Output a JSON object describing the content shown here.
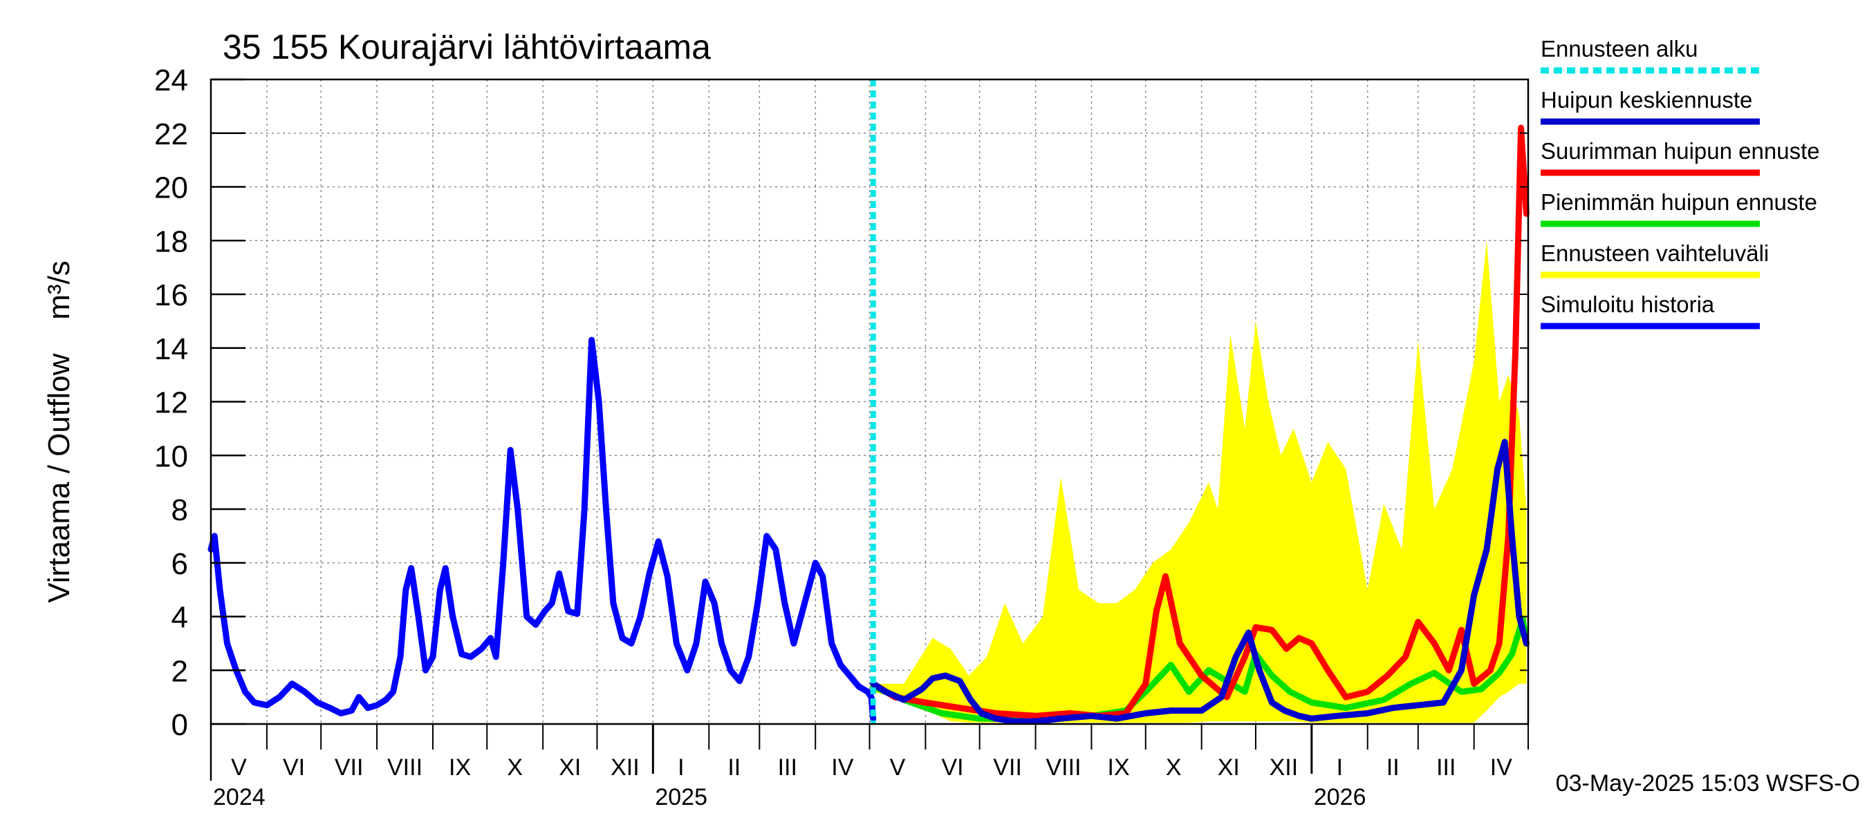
{
  "chart_data": {
    "type": "line",
    "title": "35 155 Kourajärvi lähtövirtaama",
    "ylabel": "Virtaama / Outflow    m³/s",
    "ylim": [
      0,
      24
    ],
    "yticks": [
      0,
      2,
      4,
      6,
      8,
      10,
      12,
      14,
      16,
      18,
      20,
      22,
      24
    ],
    "grid": true,
    "legend_position": "right",
    "x_months": [
      "V",
      "VI",
      "VII",
      "VIII",
      "IX",
      "X",
      "XI",
      "XII",
      "I",
      "II",
      "III",
      "IV",
      "V",
      "VI",
      "VII",
      "VIII",
      "IX",
      "X",
      "XI",
      "XII",
      "I",
      "II",
      "III",
      "IV"
    ],
    "x_years": [
      "2024",
      "2025",
      "2026"
    ],
    "forecast_start": "2025-05-03",
    "timestamp_label": "03-May-2025 15:03 WSFS-O",
    "colors": {
      "forecast_start": "#00e5e5",
      "mean_peak": "#0000cc",
      "max_peak": "#ff0000",
      "min_peak": "#00e000",
      "range": "#ffff00",
      "history": "#0000ff"
    },
    "legend": [
      {
        "key": "forecast_start",
        "label": "Ennusteen alku",
        "style": "dashed"
      },
      {
        "key": "mean_peak",
        "label": "Huipun keskiennuste",
        "style": "solid"
      },
      {
        "key": "max_peak",
        "label": "Suurimman huipun ennuste",
        "style": "solid"
      },
      {
        "key": "min_peak",
        "label": "Pienimmän huipun ennuste",
        "style": "solid"
      },
      {
        "key": "range",
        "label": "Ennusteen vaihteluväli",
        "style": "solid"
      },
      {
        "key": "history",
        "label": "Simuloitu historia",
        "style": "solid"
      }
    ],
    "series": [
      {
        "name": "Simuloitu historia",
        "key": "history",
        "x": [
          "2024-05-01",
          "2024-05-03",
          "2024-05-06",
          "2024-05-10",
          "2024-05-15",
          "2024-05-20",
          "2024-05-25",
          "2024-06-01",
          "2024-06-08",
          "2024-06-15",
          "2024-06-22",
          "2024-06-29",
          "2024-07-06",
          "2024-07-12",
          "2024-07-18",
          "2024-07-22",
          "2024-07-27",
          "2024-08-01",
          "2024-08-06",
          "2024-08-10",
          "2024-08-14",
          "2024-08-17",
          "2024-08-20",
          "2024-08-24",
          "2024-08-28",
          "2024-09-01",
          "2024-09-05",
          "2024-09-08",
          "2024-09-12",
          "2024-09-17",
          "2024-09-22",
          "2024-09-28",
          "2024-10-03",
          "2024-10-06",
          "2024-10-10",
          "2024-10-14",
          "2024-10-18",
          "2024-10-23",
          "2024-10-28",
          "2024-11-02",
          "2024-11-06",
          "2024-11-10",
          "2024-11-15",
          "2024-11-20",
          "2024-11-24",
          "2024-11-28",
          "2024-12-02",
          "2024-12-06",
          "2024-12-10",
          "2024-12-15",
          "2024-12-20",
          "2024-12-25",
          "2024-12-30",
          "2025-01-04",
          "2025-01-09",
          "2025-01-14",
          "2025-01-20",
          "2025-01-25",
          "2025-01-30",
          "2025-02-04",
          "2025-02-08",
          "2025-02-13",
          "2025-02-18",
          "2025-02-23",
          "2025-02-28",
          "2025-03-05",
          "2025-03-10",
          "2025-03-15",
          "2025-03-20",
          "2025-03-26",
          "2025-04-01",
          "2025-04-05",
          "2025-04-10",
          "2025-04-15",
          "2025-04-20",
          "2025-04-25",
          "2025-04-30",
          "2025-05-02",
          "2025-05-03"
        ],
        "y": [
          6.5,
          7.0,
          5.0,
          3.0,
          2.0,
          1.2,
          0.8,
          0.7,
          1.0,
          1.5,
          1.2,
          0.8,
          0.6,
          0.4,
          0.5,
          1.0,
          0.6,
          0.7,
          0.9,
          1.2,
          2.5,
          5.0,
          5.8,
          4.0,
          2.0,
          2.5,
          5.0,
          5.8,
          4.0,
          2.6,
          2.5,
          2.8,
          3.2,
          2.5,
          6.0,
          10.2,
          8.0,
          4.0,
          3.7,
          4.2,
          4.5,
          5.6,
          4.2,
          4.1,
          8.0,
          14.3,
          12.0,
          8.0,
          4.5,
          3.2,
          3.0,
          4.0,
          5.6,
          6.8,
          5.5,
          3.0,
          2.0,
          3.0,
          5.3,
          4.5,
          3.0,
          2.0,
          1.6,
          2.5,
          4.5,
          7.0,
          6.5,
          4.5,
          3.0,
          4.5,
          6.0,
          5.5,
          3.0,
          2.2,
          1.8,
          1.4,
          1.2,
          1.0,
          0.2
        ]
      },
      {
        "name": "Huipun keskiennuste",
        "key": "mean_peak",
        "x": [
          "2025-05-03",
          "2025-05-10",
          "2025-05-20",
          "2025-05-30",
          "2025-06-05",
          "2025-06-12",
          "2025-06-20",
          "2025-06-26",
          "2025-07-02",
          "2025-07-10",
          "2025-07-20",
          "2025-08-01",
          "2025-08-15",
          "2025-09-01",
          "2025-09-15",
          "2025-10-01",
          "2025-10-15",
          "2025-11-01",
          "2025-11-12",
          "2025-11-20",
          "2025-11-27",
          "2025-12-03",
          "2025-12-10",
          "2025-12-17",
          "2025-12-25",
          "2026-01-01",
          "2026-01-15",
          "2026-02-01",
          "2026-02-15",
          "2026-03-01",
          "2026-03-15",
          "2026-03-25",
          "2026-04-01",
          "2026-04-08",
          "2026-04-14",
          "2026-04-18",
          "2026-04-22",
          "2026-04-26",
          "2026-04-30"
        ],
        "y": [
          1.5,
          1.2,
          0.9,
          1.3,
          1.7,
          1.8,
          1.6,
          0.9,
          0.4,
          0.2,
          0.1,
          0.1,
          0.2,
          0.3,
          0.2,
          0.4,
          0.5,
          0.5,
          1.0,
          2.5,
          3.4,
          2.0,
          0.8,
          0.5,
          0.3,
          0.2,
          0.3,
          0.4,
          0.6,
          0.7,
          0.8,
          2.0,
          4.8,
          6.5,
          9.5,
          10.5,
          7.0,
          4.0,
          3.0
        ]
      },
      {
        "name": "Suurimman huipun ennuste",
        "key": "max_peak",
        "x": [
          "2025-05-03",
          "2025-05-15",
          "2025-06-01",
          "2025-06-20",
          "2025-07-10",
          "2025-08-01",
          "2025-08-20",
          "2025-09-05",
          "2025-09-20",
          "2025-10-01",
          "2025-10-07",
          "2025-10-12",
          "2025-10-20",
          "2025-11-01",
          "2025-11-15",
          "2025-11-25",
          "2025-12-01",
          "2025-12-10",
          "2025-12-18",
          "2025-12-25",
          "2026-01-01",
          "2026-01-10",
          "2026-01-20",
          "2026-02-01",
          "2026-02-12",
          "2026-02-22",
          "2026-03-01",
          "2026-03-10",
          "2026-03-18",
          "2026-03-25",
          "2026-04-01",
          "2026-04-10",
          "2026-04-15",
          "2026-04-20",
          "2026-04-24",
          "2026-04-27",
          "2026-04-30"
        ],
        "y": [
          1.5,
          1.0,
          0.8,
          0.6,
          0.4,
          0.3,
          0.4,
          0.3,
          0.4,
          1.5,
          4.2,
          5.5,
          3.0,
          1.8,
          1.0,
          2.5,
          3.6,
          3.5,
          2.8,
          3.2,
          3.0,
          2.0,
          1.0,
          1.2,
          1.8,
          2.5,
          3.8,
          3.0,
          2.0,
          3.5,
          1.5,
          2.0,
          3.0,
          7.0,
          14.0,
          22.2,
          19.0
        ]
      },
      {
        "name": "Pienimmän huipun ennuste",
        "key": "min_peak",
        "x": [
          "2025-05-03",
          "2025-05-20",
          "2025-06-10",
          "2025-07-01",
          "2025-07-20",
          "2025-08-10",
          "2025-09-01",
          "2025-09-20",
          "2025-10-01",
          "2025-10-15",
          "2025-10-25",
          "2025-11-05",
          "2025-11-15",
          "2025-11-25",
          "2025-12-01",
          "2025-12-10",
          "2025-12-20",
          "2026-01-01",
          "2026-01-20",
          "2026-02-10",
          "2026-02-25",
          "2026-03-10",
          "2026-03-25",
          "2026-04-05",
          "2026-04-15",
          "2026-04-22",
          "2026-04-28",
          "2026-04-30"
        ],
        "y": [
          1.4,
          0.9,
          0.4,
          0.2,
          0.2,
          0.2,
          0.3,
          0.5,
          1.2,
          2.2,
          1.2,
          2.0,
          1.6,
          1.2,
          2.6,
          1.8,
          1.2,
          0.8,
          0.6,
          0.9,
          1.5,
          1.9,
          1.2,
          1.3,
          1.9,
          2.6,
          3.9,
          3.0
        ]
      }
    ],
    "range_band": {
      "name": "Ennusteen vaihteluväli",
      "key": "range",
      "x": [
        "2025-05-03",
        "2025-05-20",
        "2025-06-05",
        "2025-06-15",
        "2025-06-25",
        "2025-07-05",
        "2025-07-15",
        "2025-07-25",
        "2025-08-05",
        "2025-08-15",
        "2025-08-25",
        "2025-09-05",
        "2025-09-15",
        "2025-09-25",
        "2025-10-05",
        "2025-10-15",
        "2025-10-25",
        "2025-11-05",
        "2025-11-10",
        "2025-11-17",
        "2025-11-25",
        "2025-12-01",
        "2025-12-08",
        "2025-12-15",
        "2025-12-22",
        "2026-01-01",
        "2026-01-10",
        "2026-01-20",
        "2026-02-01",
        "2026-02-10",
        "2026-02-20",
        "2026-03-01",
        "2026-03-10",
        "2026-03-20",
        "2026-04-01",
        "2026-04-08",
        "2026-04-15",
        "2026-04-20",
        "2026-04-26",
        "2026-04-30"
      ],
      "upper": [
        1.5,
        1.5,
        3.2,
        2.8,
        1.8,
        2.5,
        4.5,
        3.0,
        4.0,
        9.2,
        5.0,
        4.5,
        4.5,
        5.0,
        6.0,
        6.5,
        7.5,
        9.0,
        8.0,
        14.5,
        11.0,
        15.0,
        12.0,
        10.0,
        11.0,
        9.0,
        10.5,
        9.5,
        5.0,
        8.2,
        6.5,
        14.3,
        8.0,
        9.5,
        13.5,
        18.0,
        12.0,
        13.0,
        11.5,
        8.0
      ],
      "lower": [
        1.2,
        0.9,
        0.4,
        0.1,
        0.05,
        0.05,
        0.05,
        0.05,
        0.05,
        0.05,
        0.05,
        0.05,
        0.05,
        0.05,
        0.05,
        0.05,
        0.05,
        0.1,
        0.1,
        0.1,
        0.1,
        0.1,
        0.1,
        0.1,
        0.1,
        0.05,
        0.05,
        0.05,
        0.05,
        0.05,
        0.05,
        0.05,
        0.05,
        0.05,
        0.05,
        0.5,
        1.0,
        1.2,
        1.5,
        1.5
      ]
    }
  }
}
